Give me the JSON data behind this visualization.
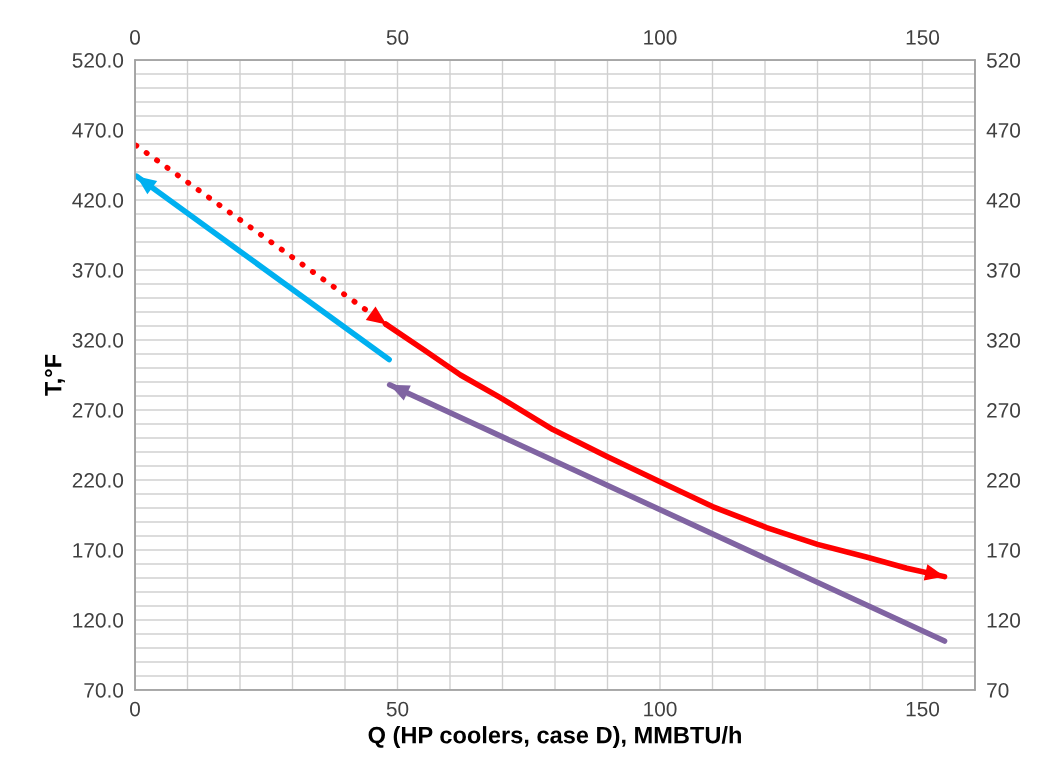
{
  "chart_data": {
    "type": "line",
    "xlabel": "Q (HP coolers, case D), MMBTU/h",
    "ylabel": "T,°F",
    "xlim": [
      0,
      160
    ],
    "ylim": [
      70,
      520
    ],
    "x2lim": [
      0,
      160
    ],
    "y2lim": [
      70,
      520
    ],
    "xticks": [
      0,
      {
        "value": 10,
        "label": null
      },
      {
        "value": 20,
        "label": null
      },
      {
        "value": 30,
        "label": null
      },
      {
        "value": 40,
        "label": null
      },
      50,
      {
        "value": 60,
        "label": null
      },
      {
        "value": 70,
        "label": null
      },
      {
        "value": 80,
        "label": null
      },
      {
        "value": 90,
        "label": null
      },
      100,
      {
        "value": 110,
        "label": null
      },
      {
        "value": 120,
        "label": null
      },
      {
        "value": 130,
        "label": null
      },
      {
        "value": 140,
        "label": null
      },
      150,
      {
        "value": 160,
        "label": null
      }
    ],
    "x2ticks": [
      0,
      50,
      100,
      150
    ],
    "yticks": [
      {
        "value": 70,
        "label": "70.0"
      },
      {
        "value": 80,
        "label": null
      },
      {
        "value": 90,
        "label": null
      },
      {
        "value": 100,
        "label": null
      },
      {
        "value": 110,
        "label": null
      },
      {
        "value": 120,
        "label": "120.0"
      },
      {
        "value": 130,
        "label": null
      },
      {
        "value": 140,
        "label": null
      },
      {
        "value": 150,
        "label": null
      },
      {
        "value": 160,
        "label": null
      },
      {
        "value": 170,
        "label": "170.0"
      },
      {
        "value": 180,
        "label": null
      },
      {
        "value": 190,
        "label": null
      },
      {
        "value": 200,
        "label": null
      },
      {
        "value": 210,
        "label": null
      },
      {
        "value": 220,
        "label": "220.0"
      },
      {
        "value": 230,
        "label": null
      },
      {
        "value": 240,
        "label": null
      },
      {
        "value": 250,
        "label": null
      },
      {
        "value": 260,
        "label": null
      },
      {
        "value": 270,
        "label": "270.0"
      },
      {
        "value": 280,
        "label": null
      },
      {
        "value": 290,
        "label": null
      },
      {
        "value": 300,
        "label": null
      },
      {
        "value": 310,
        "label": null
      },
      {
        "value": 320,
        "label": "320.0"
      },
      {
        "value": 330,
        "label": null
      },
      {
        "value": 340,
        "label": null
      },
      {
        "value": 350,
        "label": null
      },
      {
        "value": 360,
        "label": null
      },
      {
        "value": 370,
        "label": "370.0"
      },
      {
        "value": 380,
        "label": null
      },
      {
        "value": 390,
        "label": null
      },
      {
        "value": 400,
        "label": null
      },
      {
        "value": 410,
        "label": null
      },
      {
        "value": 420,
        "label": "420.0"
      },
      {
        "value": 430,
        "label": null
      },
      {
        "value": 440,
        "label": null
      },
      {
        "value": 450,
        "label": null
      },
      {
        "value": 460,
        "label": null
      },
      {
        "value": 470,
        "label": "470.0"
      },
      {
        "value": 480,
        "label": null
      },
      {
        "value": 490,
        "label": null
      },
      {
        "value": 500,
        "label": null
      },
      {
        "value": 510,
        "label": null
      },
      {
        "value": 520,
        "label": "520.0"
      }
    ],
    "y2ticks": [
      70,
      120,
      170,
      220,
      270,
      320,
      370,
      420,
      470,
      520
    ],
    "grid": true,
    "series": [
      {
        "color": "#ff0000",
        "line_style": "dotted",
        "x": [
          0.2,
          47.9
        ],
        "values": [
          459,
          331
        ]
      },
      {
        "color": "#ff0000",
        "line_style": "solid",
        "x": [
          47.9,
          55,
          62,
          69.5,
          79.6,
          89.8,
          99.9,
          110,
          120.3,
          130,
          139.3,
          147,
          154.2
        ],
        "values": [
          331,
          313,
          295,
          279,
          256,
          237,
          219,
          201,
          186,
          174,
          165,
          157,
          151
        ]
      },
      {
        "color": "#00b0f0",
        "line_style": "solid",
        "x": [
          48.4,
          0.3
        ],
        "values": [
          306,
          437
        ]
      },
      {
        "color": "#8064a2",
        "line_style": "solid",
        "x": [
          154.2,
          48.5
        ],
        "values": [
          105,
          288
        ]
      }
    ]
  }
}
